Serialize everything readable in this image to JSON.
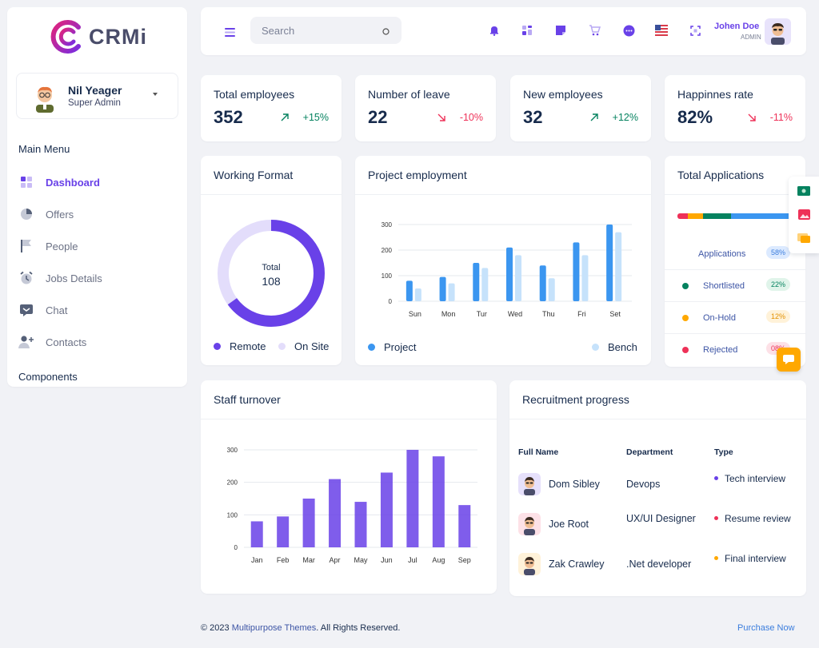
{
  "brand": {
    "name": "CRMi"
  },
  "sidebar": {
    "user": {
      "name": "Nil Yeager",
      "role": "Super Admin"
    },
    "main_menu_heading": "Main Menu",
    "items": [
      {
        "label": "Dashboard",
        "icon": "dashboard-icon",
        "active": true
      },
      {
        "label": "Offers",
        "icon": "pie-chart-icon",
        "active": false
      },
      {
        "label": "People",
        "icon": "flag-icon",
        "active": false
      },
      {
        "label": "Jobs Details",
        "icon": "alarm-clock-icon",
        "active": false
      },
      {
        "label": "Chat",
        "icon": "chat-icon",
        "active": false
      },
      {
        "label": "Contacts",
        "icon": "add-user-icon",
        "active": false
      }
    ],
    "components_heading": "Components"
  },
  "header": {
    "search_placeholder": "Search",
    "user_name": "Johen Doe",
    "user_role": "ADMIN",
    "icons": [
      "bell-icon",
      "grid-icon",
      "note-icon",
      "cart-icon",
      "message-icon",
      "us-flag-icon",
      "fullscreen-icon"
    ]
  },
  "stats": [
    {
      "title": "Total employees",
      "value": "352",
      "change": "+15%",
      "direction": "up"
    },
    {
      "title": "Number of leave",
      "value": "22",
      "change": "-10%",
      "direction": "down"
    },
    {
      "title": "New employees",
      "value": "32",
      "change": "+12%",
      "direction": "up"
    },
    {
      "title": "Happinnes rate",
      "value": "82%",
      "change": "-11%",
      "direction": "down"
    }
  ],
  "colors": {
    "primary": "#6941e8",
    "primary_light": "#e3ddfb",
    "blue": "#3b96f0",
    "blue_light": "#c6e2fb",
    "green": "#05825f",
    "red": "#ee3158",
    "orange": "#ffa800"
  },
  "working_format": {
    "title": "Working Format",
    "center_label": "Total",
    "center_value": "108",
    "legend": [
      "Remote",
      "On Site"
    ]
  },
  "project_employment": {
    "title": "Project employment",
    "legend": [
      "Project",
      "Bench"
    ]
  },
  "total_applications": {
    "title": "Total Applications",
    "rows": [
      {
        "label": "Applications",
        "badge": "58%",
        "dot_color": "",
        "badge_bg": "#dceaff",
        "badge_fg": "#3b7ddd"
      },
      {
        "label": "Shortlisted",
        "badge": "22%",
        "dot_color": "#05825f",
        "badge_bg": "#e0f4ea",
        "badge_fg": "#05825f"
      },
      {
        "label": "On-Hold",
        "badge": "12%",
        "dot_color": "#ffa800",
        "badge_bg": "#fff2d9",
        "badge_fg": "#e39100"
      },
      {
        "label": "Rejected",
        "badge": "08%",
        "dot_color": "#ee3158",
        "badge_bg": "#fde1e7",
        "badge_fg": "#ee3158"
      }
    ]
  },
  "staff_turnover": {
    "title": "Staff turnover"
  },
  "recruitment": {
    "title": "Recruitment progress",
    "headers": [
      "Full Name",
      "Department",
      "Type"
    ],
    "rows": [
      {
        "name": "Dom Sibley",
        "department": "Devops",
        "type": "Tech interview",
        "type_color": "#6941e8",
        "avatar_bg": "#e6e0fb"
      },
      {
        "name": "Joe Root",
        "department": "UX/UI Designer",
        "type": "Resume review",
        "type_color": "#ee3158",
        "avatar_bg": "#fde1e7"
      },
      {
        "name": "Zak Crawley",
        "department": ".Net developer",
        "type": "Final interview",
        "type_color": "#ffa800",
        "avatar_bg": "#fff2d9"
      }
    ]
  },
  "footer": {
    "copyright_prefix": "© 2023",
    "brand": "Multipurpose Themes",
    "copyright_suffix": ". All Rights Reserved.",
    "purchase": "Purchase Now"
  },
  "chart_data": [
    {
      "type": "pie",
      "title": "Working Format",
      "categories": [
        "Remote",
        "On Site"
      ],
      "values": [
        65,
        35
      ],
      "total": 108
    },
    {
      "type": "bar",
      "title": "Project employment",
      "categories": [
        "Sun",
        "Mon",
        "Tur",
        "Wed",
        "Thu",
        "Fri",
        "Set"
      ],
      "series": [
        {
          "name": "Project",
          "values": [
            80,
            95,
            150,
            210,
            140,
            230,
            300
          ]
        },
        {
          "name": "Bench",
          "values": [
            50,
            70,
            130,
            180,
            90,
            180,
            270
          ]
        }
      ],
      "ylim": [
        0,
        300
      ],
      "yticks": [
        0,
        100,
        200,
        300
      ],
      "grid": true
    },
    {
      "type": "bar",
      "title": "Staff turnover",
      "categories": [
        "Jan",
        "Feb",
        "Mar",
        "Apr",
        "May",
        "Jun",
        "Jul",
        "Aug",
        "Sep"
      ],
      "values": [
        80,
        95,
        150,
        210,
        140,
        230,
        300,
        280,
        130
      ],
      "ylim": [
        0,
        300
      ],
      "yticks": [
        0,
        100,
        200,
        300
      ],
      "grid": true
    },
    {
      "type": "bar",
      "title": "Total Applications",
      "categories": [
        "Applications",
        "Shortlisted",
        "On-Hold",
        "Rejected"
      ],
      "values": [
        58,
        22,
        12,
        8
      ],
      "stacked": true
    }
  ]
}
